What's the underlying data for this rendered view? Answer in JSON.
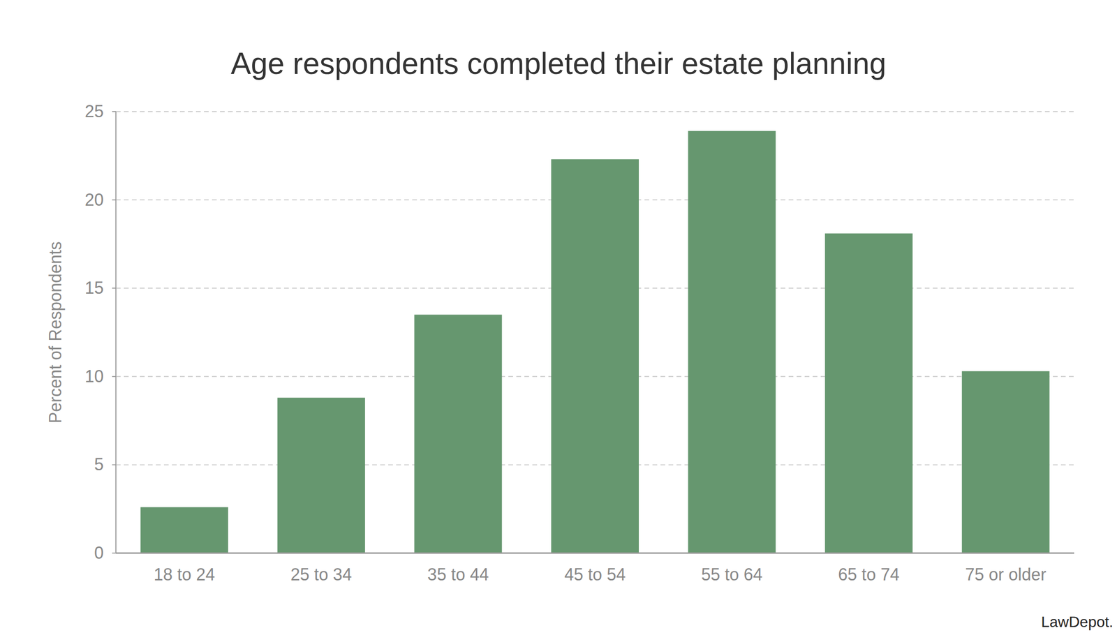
{
  "chart_data": {
    "type": "bar",
    "title": "Age respondents completed their estate planning",
    "y_label": "Percent of Respondents",
    "categories": [
      "18 to 24",
      "25 to 34",
      "35 to 44",
      "45 to 54",
      "55 to 64",
      "65 to 74",
      "75 or older"
    ],
    "values": [
      2.6,
      8.8,
      13.5,
      22.3,
      23.9,
      18.1,
      10.3
    ],
    "color": "#66976f",
    "ylim": [
      0,
      25
    ],
    "yticks": [
      0,
      5,
      10,
      15,
      20,
      25
    ],
    "grid": true,
    "annotations": [
      "LawDepot."
    ]
  }
}
